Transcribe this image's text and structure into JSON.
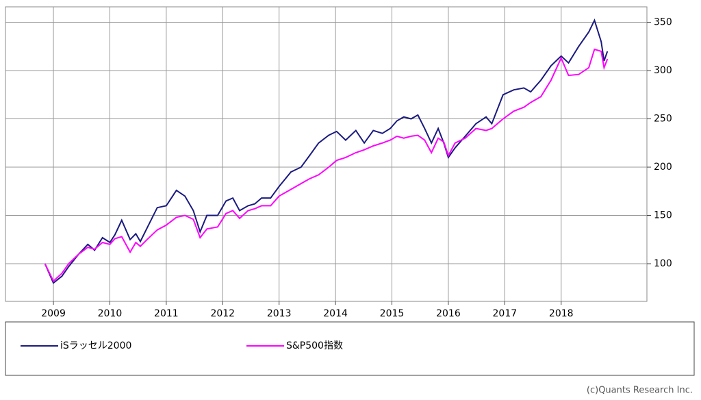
{
  "chart_data": {
    "type": "line",
    "x": [
      2008.85,
      2009.0,
      2009.15,
      2009.27,
      2009.45,
      2009.61,
      2009.73,
      2009.87,
      2010.0,
      2010.09,
      2010.21,
      2010.36,
      2010.46,
      2010.54,
      2010.66,
      2010.84,
      2011.0,
      2011.18,
      2011.33,
      2011.48,
      2011.6,
      2011.72,
      2011.91,
      2012.06,
      2012.18,
      2012.3,
      2012.45,
      2012.57,
      2012.69,
      2012.85,
      2013.0,
      2013.21,
      2013.39,
      2013.54,
      2013.7,
      2013.88,
      2014.02,
      2014.18,
      2014.36,
      2014.51,
      2014.67,
      2014.83,
      2014.97,
      2015.09,
      2015.21,
      2015.34,
      2015.46,
      2015.58,
      2015.7,
      2015.82,
      2015.92,
      2016.0,
      2016.12,
      2016.3,
      2016.49,
      2016.67,
      2016.77,
      2016.97,
      2017.16,
      2017.34,
      2017.46,
      2017.64,
      2017.82,
      2018.0,
      2018.13,
      2018.31,
      2018.49,
      2018.59,
      2018.71,
      2018.76,
      2018.82
    ],
    "series": [
      {
        "name": "iSラッセル2000",
        "color": "#1a1a80",
        "values": [
          100,
          80,
          87,
          97,
          110,
          120,
          114,
          127,
          122,
          130,
          145,
          125,
          131,
          123,
          137,
          158,
          160,
          176,
          170,
          155,
          133,
          150,
          150,
          165,
          168,
          155,
          160,
          162,
          168,
          168,
          180,
          195,
          200,
          212,
          225,
          233,
          237,
          228,
          238,
          225,
          238,
          235,
          240,
          248,
          252,
          250,
          254,
          240,
          225,
          240,
          225,
          210,
          220,
          232,
          245,
          252,
          245,
          275,
          280,
          282,
          278,
          290,
          305,
          315,
          308,
          325,
          340,
          352,
          330,
          310,
          320
        ]
      },
      {
        "name": "S&P500指数",
        "color": "#ff00ff",
        "values": [
          100,
          82,
          90,
          100,
          110,
          117,
          115,
          122,
          120,
          126,
          128,
          112,
          122,
          118,
          125,
          135,
          140,
          148,
          150,
          146,
          127,
          136,
          138,
          152,
          155,
          147,
          155,
          157,
          160,
          160,
          170,
          177,
          183,
          188,
          192,
          200,
          207,
          210,
          215,
          218,
          222,
          225,
          228,
          232,
          230,
          232,
          233,
          228,
          215,
          230,
          226,
          212,
          225,
          230,
          240,
          238,
          240,
          250,
          258,
          262,
          267,
          273,
          290,
          313,
          295,
          296,
          303,
          322,
          320,
          303,
          312
        ]
      }
    ],
    "xlim": [
      2008.15,
      2019.52
    ],
    "xticks": [
      2009,
      2010,
      2011,
      2012,
      2013,
      2014,
      2015,
      2016,
      2017,
      2018
    ],
    "ylim": [
      61,
      366
    ],
    "yticks": [
      100,
      150,
      200,
      250,
      300,
      350
    ],
    "grid": true,
    "credit": "(c)Quants Research Inc."
  }
}
